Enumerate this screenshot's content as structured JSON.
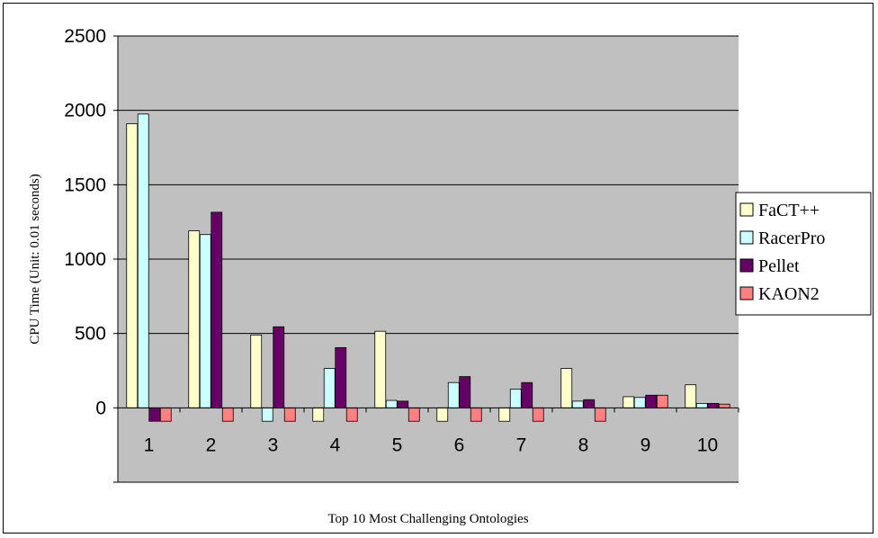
{
  "chart_data": {
    "type": "bar",
    "title": "",
    "xlabel": "Top 10 Most Challenging Ontologies",
    "ylabel": "CPU Time (Unit: 0.01 seconds)",
    "ylim": [
      -500,
      2500
    ],
    "yticks": [
      "2500",
      "2000",
      "1500",
      "1000",
      "500",
      "0"
    ],
    "ytick_values": [
      2500,
      2000,
      1500,
      1000,
      500,
      0
    ],
    "categories": [
      "1",
      "2",
      "3",
      "4",
      "5",
      "6",
      "7",
      "8",
      "9",
      "10"
    ],
    "grid": true,
    "legend_position": "right",
    "plot_background": "#c0c0c0",
    "series": [
      {
        "name": "FaCT++",
        "color": "#ffffcc",
        "values": [
          1910,
          1190,
          490,
          -90,
          515,
          -90,
          -90,
          265,
          75,
          155
        ]
      },
      {
        "name": "RacerPro",
        "color": "#ccffff",
        "values": [
          1975,
          1165,
          -90,
          265,
          50,
          170,
          125,
          45,
          70,
          30
        ]
      },
      {
        "name": "Pellet",
        "color": "#660066",
        "values": [
          -90,
          1315,
          545,
          405,
          45,
          210,
          170,
          55,
          85,
          30
        ]
      },
      {
        "name": "KAON2",
        "color": "#ff8080",
        "values": [
          -90,
          -90,
          -90,
          -90,
          -90,
          -90,
          -90,
          -90,
          85,
          25
        ]
      }
    ]
  }
}
